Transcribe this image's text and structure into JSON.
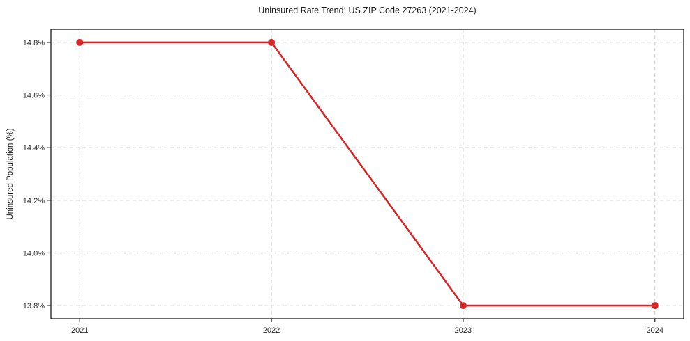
{
  "chart_data": {
    "type": "line",
    "title": "Uninsured Rate Trend: US ZIP Code 27263 (2021-2024)",
    "xlabel": "",
    "ylabel": "Uninsured Population (%)",
    "x": [
      2021,
      2022,
      2023,
      2024
    ],
    "series": [
      {
        "name": "Uninsured Rate",
        "values": [
          14.8,
          14.8,
          13.8,
          13.8
        ]
      }
    ],
    "x_tick_labels": [
      "2021",
      "2022",
      "2023",
      "2024"
    ],
    "y_ticks": [
      13.8,
      14.0,
      14.2,
      14.4,
      14.6,
      14.8
    ],
    "y_tick_labels": [
      "13.8%",
      "14.0%",
      "14.2%",
      "14.4%",
      "14.6%",
      "14.8%"
    ],
    "xlim": [
      2020.85,
      2024.15
    ],
    "ylim": [
      13.75,
      14.85
    ],
    "grid": true,
    "grid_style": "dashed",
    "legend": false,
    "marker": "circle"
  },
  "colors": {
    "line": "#d62728",
    "grid": "#cccccc",
    "spine": "#1a1a1a",
    "tick_text": "#262626",
    "background": "#ffffff"
  }
}
